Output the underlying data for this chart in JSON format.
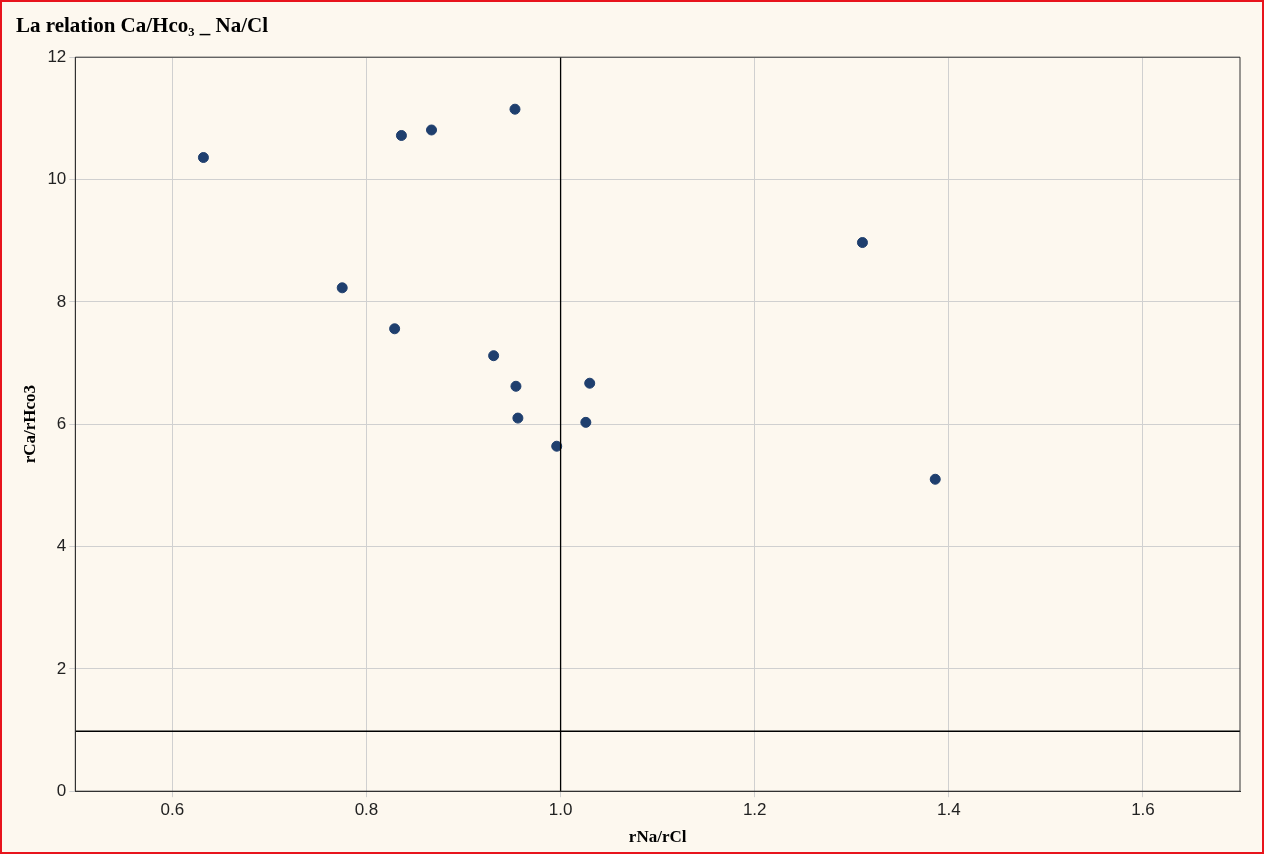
{
  "chart_data": {
    "type": "scatter",
    "title": "La relation Ca/Hco₃ _ Na/Cl",
    "xlabel": "rNa/rCl",
    "ylabel": "rCa/rHco3",
    "series": [
      {
        "color": "#1f3f6e",
        "x": [
          0.632,
          0.775,
          0.829,
          0.836,
          0.867,
          0.953,
          0.931,
          0.954,
          0.956,
          0.996,
          1.026,
          1.03,
          1.311,
          1.386
        ],
        "values": [
          10.36,
          8.23,
          7.56,
          10.72,
          10.81,
          11.15,
          7.12,
          6.62,
          6.1,
          5.64,
          6.03,
          6.67,
          8.97,
          5.1
        ]
      }
    ],
    "xlim": [
      0.5,
      1.7
    ],
    "xticks": [
      {
        "value": 0.6,
        "label": "0.6"
      },
      {
        "value": 0.8,
        "label": "0.8"
      },
      {
        "value": 1.0,
        "label": "1.0"
      },
      {
        "value": 1.2,
        "label": "1.2"
      },
      {
        "value": 1.4,
        "label": "1.4"
      },
      {
        "value": 1.6,
        "label": "1.6"
      }
    ],
    "ylim": [
      0,
      12
    ],
    "yticks": [
      0,
      2,
      4,
      6,
      8,
      10,
      12
    ],
    "ref_lines": [
      {
        "axis": "x",
        "value": 1.0,
        "color": "#000000"
      },
      {
        "axis": "y",
        "value": 0.98,
        "color": "#000000"
      }
    ],
    "grid": true,
    "legend": false,
    "marker": "circle"
  }
}
